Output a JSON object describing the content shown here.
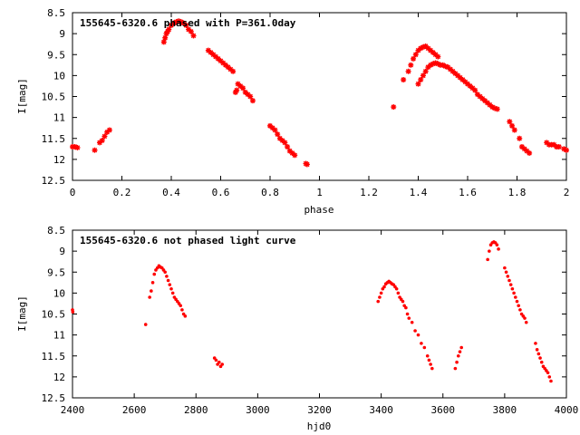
{
  "colors": {
    "points": "#ff0000",
    "axes": "#000000",
    "background": "#ffffff"
  },
  "chart_data": [
    {
      "type": "scatter",
      "title": "155645-6320.6 phased with P=361.0day",
      "xlabel": "phase",
      "ylabel": "I[mag]",
      "xlim": [
        0,
        2
      ],
      "ylim": [
        8.5,
        12.5
      ],
      "y_inverted": true,
      "xticks": [
        "0",
        "0.2",
        "0.4",
        "0.6",
        "0.8",
        "1",
        "1.2",
        "1.4",
        "1.6",
        "1.8",
        "2"
      ],
      "yticks": [
        "8.5",
        "9",
        "9.5",
        "10",
        "10.5",
        "11",
        "11.5",
        "12",
        "12.5"
      ],
      "grid": false,
      "marker": "star",
      "series": [
        {
          "x": [
            0.0,
            0.01,
            0.02,
            0.09,
            0.11,
            0.12,
            0.13,
            0.14,
            0.15,
            0.37,
            0.375,
            0.38,
            0.385,
            0.39,
            0.4,
            0.41,
            0.42,
            0.43,
            0.44,
            0.45,
            0.46,
            0.47,
            0.48,
            0.49,
            0.55,
            0.56,
            0.57,
            0.58,
            0.59,
            0.6,
            0.61,
            0.62,
            0.63,
            0.64,
            0.65,
            0.66,
            0.665,
            0.67,
            0.68,
            0.69,
            0.7,
            0.71,
            0.72,
            0.73,
            0.8,
            0.81,
            0.82,
            0.83,
            0.84,
            0.85,
            0.86,
            0.87,
            0.88,
            0.89,
            0.9,
            0.945,
            0.95,
            1.3,
            1.34,
            1.36,
            1.37,
            1.38,
            1.39,
            1.4,
            1.41,
            1.42,
            1.43,
            1.44,
            1.45,
            1.46,
            1.47,
            1.48,
            1.4,
            1.41,
            1.42,
            1.43,
            1.44,
            1.45,
            1.46,
            1.47,
            1.48,
            1.49,
            1.5,
            1.51,
            1.52,
            1.53,
            1.54,
            1.55,
            1.56,
            1.57,
            1.58,
            1.59,
            1.6,
            1.61,
            1.62,
            1.63,
            1.64,
            1.65,
            1.66,
            1.67,
            1.68,
            1.69,
            1.7,
            1.71,
            1.72,
            1.77,
            1.78,
            1.79,
            1.81,
            1.82,
            1.83,
            1.84,
            1.85,
            1.92,
            1.93,
            1.94,
            1.95,
            1.96,
            1.97,
            1.99,
            2.0
          ],
          "y": [
            11.7,
            11.7,
            11.72,
            11.78,
            11.6,
            11.55,
            11.45,
            11.35,
            11.3,
            9.2,
            9.1,
            9.0,
            8.95,
            8.9,
            8.8,
            8.75,
            8.72,
            8.7,
            8.72,
            8.75,
            8.8,
            8.9,
            8.95,
            9.05,
            9.4,
            9.45,
            9.5,
            9.55,
            9.6,
            9.65,
            9.7,
            9.75,
            9.8,
            9.85,
            9.9,
            10.4,
            10.35,
            10.2,
            10.25,
            10.3,
            10.4,
            10.45,
            10.5,
            10.6,
            11.2,
            11.25,
            11.3,
            11.4,
            11.5,
            11.55,
            11.6,
            11.7,
            11.8,
            11.85,
            11.9,
            12.1,
            12.12,
            10.75,
            10.1,
            9.9,
            9.75,
            9.6,
            9.5,
            9.4,
            9.35,
            9.32,
            9.3,
            9.35,
            9.4,
            9.45,
            9.5,
            9.55,
            10.2,
            10.1,
            10.0,
            9.9,
            9.8,
            9.75,
            9.72,
            9.7,
            9.72,
            9.75,
            9.75,
            9.78,
            9.8,
            9.85,
            9.9,
            9.95,
            10.0,
            10.05,
            10.1,
            10.15,
            10.2,
            10.25,
            10.3,
            10.35,
            10.45,
            10.5,
            10.55,
            10.6,
            10.65,
            10.7,
            10.75,
            10.78,
            10.8,
            11.1,
            11.2,
            11.3,
            11.5,
            11.7,
            11.75,
            11.8,
            11.85,
            11.6,
            11.65,
            11.65,
            11.65,
            11.7,
            11.7,
            11.75,
            11.78
          ]
        }
      ]
    },
    {
      "type": "scatter",
      "title": "155645-6320.6 not phased light curve",
      "xlabel": "hjd0",
      "ylabel": "I[mag]",
      "xlim": [
        2400,
        4000
      ],
      "ylim": [
        8.5,
        12.5
      ],
      "y_inverted": true,
      "xticks": [
        "2400",
        "2600",
        "2800",
        "3000",
        "3200",
        "3400",
        "3600",
        "3800",
        "4000"
      ],
      "yticks": [
        "8.5",
        "9",
        "9.5",
        "10",
        "10.5",
        "11",
        "11.5",
        "12",
        "12.5"
      ],
      "grid": false,
      "marker": "dot",
      "series": [
        {
          "x": [
            2400,
            2401,
            2637,
            2650,
            2655,
            2660,
            2665,
            2670,
            2675,
            2680,
            2685,
            2690,
            2695,
            2700,
            2705,
            2710,
            2715,
            2720,
            2725,
            2730,
            2735,
            2740,
            2745,
            2750,
            2755,
            2760,
            2765,
            2860,
            2865,
            2870,
            2875,
            2880,
            2885,
            3390,
            3395,
            3400,
            3405,
            3410,
            3415,
            3420,
            3425,
            3430,
            3435,
            3440,
            3445,
            3450,
            3455,
            3460,
            3465,
            3470,
            3475,
            3480,
            3485,
            3490,
            3500,
            3510,
            3520,
            3530,
            3540,
            3550,
            3555,
            3560,
            3565,
            3640,
            3645,
            3650,
            3655,
            3660,
            3745,
            3750,
            3755,
            3760,
            3765,
            3770,
            3775,
            3780,
            3800,
            3805,
            3810,
            3815,
            3820,
            3825,
            3830,
            3835,
            3840,
            3845,
            3850,
            3855,
            3860,
            3865,
            3870,
            3900,
            3905,
            3910,
            3915,
            3920,
            3925,
            3930,
            3935,
            3940,
            3945,
            3950
          ],
          "y": [
            10.4,
            10.45,
            10.75,
            10.1,
            9.95,
            9.75,
            9.55,
            9.45,
            9.4,
            9.35,
            9.38,
            9.4,
            9.45,
            9.5,
            9.6,
            9.7,
            9.8,
            9.9,
            10.0,
            10.1,
            10.15,
            10.2,
            10.25,
            10.3,
            10.4,
            10.5,
            10.55,
            11.55,
            11.6,
            11.7,
            11.65,
            11.75,
            11.7,
            10.2,
            10.1,
            10.0,
            9.9,
            9.85,
            9.78,
            9.75,
            9.72,
            9.75,
            9.78,
            9.8,
            9.85,
            9.9,
            10.0,
            10.1,
            10.15,
            10.2,
            10.3,
            10.35,
            10.5,
            10.6,
            10.7,
            10.9,
            11.0,
            11.2,
            11.3,
            11.5,
            11.6,
            11.7,
            11.8,
            11.8,
            11.65,
            11.5,
            11.4,
            11.3,
            9.2,
            9.0,
            8.85,
            8.8,
            8.78,
            8.8,
            8.85,
            8.95,
            9.4,
            9.5,
            9.6,
            9.7,
            9.8,
            9.9,
            10.0,
            10.1,
            10.2,
            10.3,
            10.4,
            10.5,
            10.55,
            10.6,
            10.7,
            11.2,
            11.35,
            11.45,
            11.55,
            11.65,
            11.75,
            11.8,
            11.85,
            11.9,
            12.0,
            12.1
          ]
        }
      ]
    }
  ]
}
